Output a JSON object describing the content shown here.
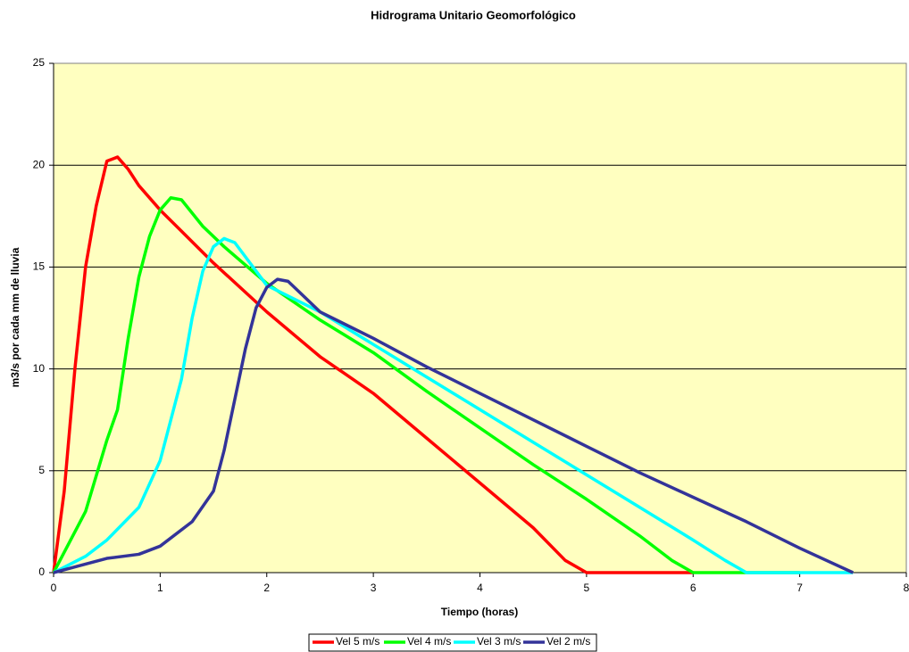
{
  "chart_data": {
    "type": "line",
    "title": "Hidrograma Unitario Geomorfológico",
    "x_label": "Tiempo (horas)",
    "y_label": "m3/s por cada mm de lluvia",
    "xlim": [
      0,
      8
    ],
    "xticks": [
      0,
      1,
      2,
      3,
      4,
      5,
      6,
      7,
      8
    ],
    "ylim": [
      0,
      25
    ],
    "yticks": [
      0,
      5,
      10,
      15,
      20,
      25
    ],
    "grid": true,
    "legend": "bottom",
    "plot_background": "#ffffc0",
    "series": [
      {
        "name": "Vel 5 m/s",
        "color": "#ff0000",
        "x": [
          0,
          0.1,
          0.2,
          0.3,
          0.4,
          0.5,
          0.6,
          0.7,
          0.8,
          1,
          1.5,
          2,
          2.5,
          3,
          3.5,
          4,
          4.5,
          4.8,
          5,
          5.5,
          6
        ],
        "values": [
          0,
          4,
          10,
          15,
          18,
          20.2,
          20.4,
          19.8,
          19,
          17.8,
          15.2,
          12.8,
          10.6,
          8.8,
          6.6,
          4.4,
          2.2,
          0.6,
          0,
          0,
          0
        ]
      },
      {
        "name": "Vel 4 m/s",
        "color": "#00ff00",
        "x": [
          0,
          0.2,
          0.3,
          0.5,
          0.6,
          0.7,
          0.8,
          0.9,
          1,
          1.1,
          1.2,
          1.4,
          1.6,
          2,
          2.5,
          3,
          3.5,
          4,
          4.5,
          5,
          5.5,
          5.8,
          6,
          6.5,
          7
        ],
        "values": [
          0,
          2,
          3,
          6.5,
          8,
          11.5,
          14.5,
          16.5,
          17.8,
          18.4,
          18.3,
          17,
          16,
          14.2,
          12.4,
          10.8,
          8.9,
          7.1,
          5.3,
          3.6,
          1.8,
          0.6,
          0,
          0,
          0
        ]
      },
      {
        "name": "Vel 3 m/s",
        "color": "#00ffff",
        "x": [
          0,
          0.3,
          0.5,
          0.8,
          1,
          1.2,
          1.3,
          1.4,
          1.5,
          1.6,
          1.7,
          2,
          2.5,
          3,
          3.5,
          4,
          4.5,
          5,
          5.5,
          6,
          6.3,
          6.5,
          7,
          7.5
        ],
        "values": [
          0,
          0.8,
          1.6,
          3.2,
          5.5,
          9.5,
          12.5,
          14.8,
          16,
          16.4,
          16.2,
          14.1,
          12.8,
          11.2,
          9.6,
          8,
          6.4,
          4.8,
          3.2,
          1.6,
          0.6,
          0,
          0,
          0
        ]
      },
      {
        "name": "Vel 2 m/s",
        "color": "#333399",
        "x": [
          0,
          0.5,
          0.8,
          1,
          1.3,
          1.5,
          1.6,
          1.7,
          1.8,
          1.9,
          2,
          2.1,
          2.2,
          2.5,
          3,
          3.5,
          4,
          4.5,
          5,
          5.5,
          6,
          6.5,
          7,
          7.5
        ],
        "values": [
          0,
          0.7,
          0.9,
          1.3,
          2.5,
          4,
          6,
          8.5,
          11,
          13,
          14,
          14.4,
          14.3,
          12.8,
          11.5,
          10.1,
          8.8,
          7.5,
          6.2,
          4.9,
          3.7,
          2.5,
          1.2,
          0
        ]
      }
    ]
  }
}
